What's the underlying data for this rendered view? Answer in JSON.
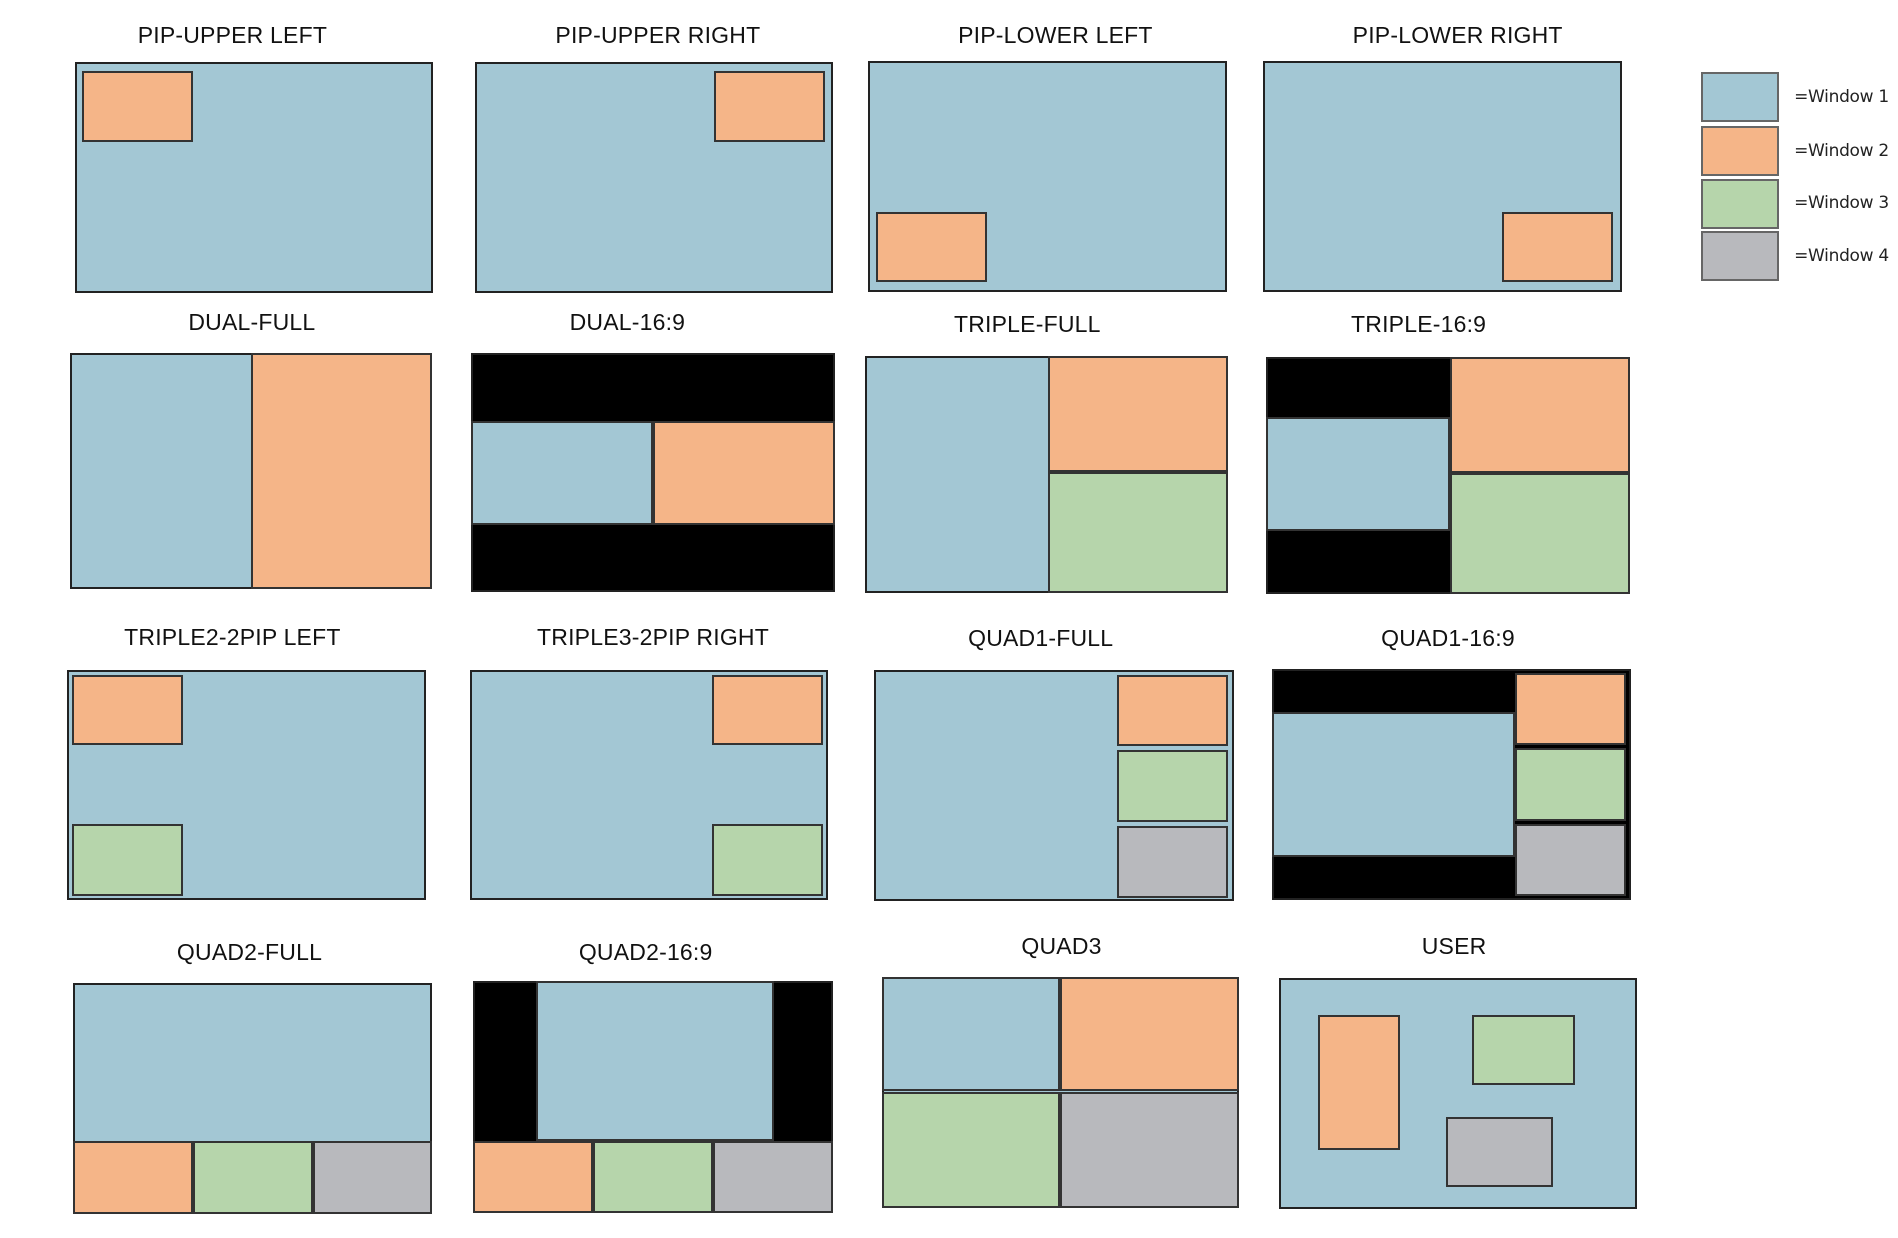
{
  "colors": {
    "window1": "#a3c7d4",
    "window2": "#f5b588",
    "window3": "#b6d5ab",
    "window4": "#b8b9bd",
    "letterbox": "#000000"
  },
  "legend": [
    {
      "label": "=Window 1",
      "color_key": "window1"
    },
    {
      "label": "=Window 2",
      "color_key": "window2"
    },
    {
      "label": "=Window 3",
      "color_key": "window3"
    },
    {
      "label": "=Window 4",
      "color_key": "window4"
    }
  ],
  "layouts": [
    {
      "id": "pip-upper-left",
      "title": "PIP-UPPER LEFT"
    },
    {
      "id": "pip-upper-right",
      "title": "PIP-UPPER RIGHT"
    },
    {
      "id": "pip-lower-left",
      "title": "PIP-LOWER LEFT"
    },
    {
      "id": "pip-lower-right",
      "title": "PIP-LOWER RIGHT"
    },
    {
      "id": "dual-full",
      "title": "DUAL-FULL"
    },
    {
      "id": "dual-16-9",
      "title": "DUAL-16:9"
    },
    {
      "id": "triple-full",
      "title": "TRIPLE-FULL"
    },
    {
      "id": "triple-16-9",
      "title": "TRIPLE-16:9"
    },
    {
      "id": "triple2-2pip-left",
      "title": "TRIPLE2-2PIP LEFT"
    },
    {
      "id": "triple3-2pip-right",
      "title": "TRIPLE3-2PIP RIGHT"
    },
    {
      "id": "quad1-full",
      "title": "QUAD1-FULL"
    },
    {
      "id": "quad1-16-9",
      "title": "QUAD1-16:9"
    },
    {
      "id": "quad2-full",
      "title": "QUAD2-FULL"
    },
    {
      "id": "quad2-16-9",
      "title": "QUAD2-16:9"
    },
    {
      "id": "quad3",
      "title": "QUAD3"
    },
    {
      "id": "user",
      "title": "USER"
    }
  ]
}
